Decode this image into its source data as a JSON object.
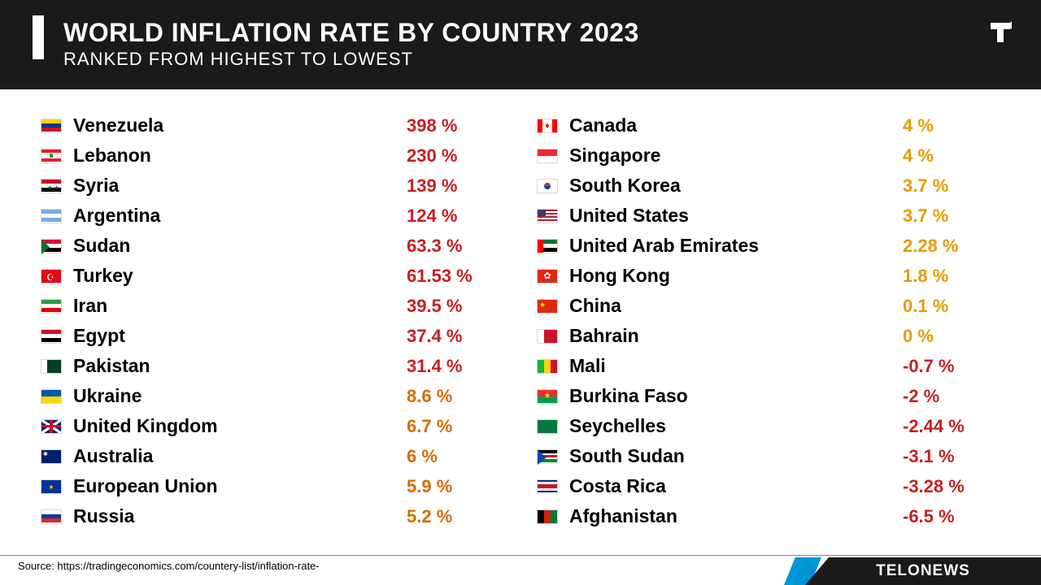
{
  "header": {
    "title": "WORLD INFLATION RATE BY COUNTRY 2023",
    "subtitle": "RANKED FROM HIGHEST TO LOWEST"
  },
  "colors": {
    "high": "#c81e1e",
    "mid": "#d96a00",
    "low_pos": "#e69b00",
    "negative": "#c81e1e",
    "header_bg": "#1a1a1a",
    "brand_accent": "#0095d6"
  },
  "left": [
    {
      "country": "Venezuela",
      "value": "398 %",
      "color": "#c81e1e",
      "flag": "ve"
    },
    {
      "country": "Lebanon",
      "value": "230 %",
      "color": "#c81e1e",
      "flag": "lb"
    },
    {
      "country": "Syria",
      "value": "139 %",
      "color": "#c81e1e",
      "flag": "sy"
    },
    {
      "country": "Argentina",
      "value": "124 %",
      "color": "#c81e1e",
      "flag": "ar"
    },
    {
      "country": "Sudan",
      "value": "63.3 %",
      "color": "#c81e1e",
      "flag": "sd"
    },
    {
      "country": "Turkey",
      "value": "61.53 %",
      "color": "#c81e1e",
      "flag": "tr"
    },
    {
      "country": "Iran",
      "value": "39.5 %",
      "color": "#c81e1e",
      "flag": "ir"
    },
    {
      "country": "Egypt",
      "value": "37.4 %",
      "color": "#c81e1e",
      "flag": "eg"
    },
    {
      "country": "Pakistan",
      "value": "31.4 %",
      "color": "#c81e1e",
      "flag": "pk"
    },
    {
      "country": "Ukraine",
      "value": "8.6 %",
      "color": "#d96a00",
      "flag": "ua"
    },
    {
      "country": "United Kingdom",
      "value": "6.7 %",
      "color": "#d96a00",
      "flag": "gb"
    },
    {
      "country": "Australia",
      "value": "6 %",
      "color": "#d96a00",
      "flag": "au"
    },
    {
      "country": "European Union",
      "value": "5.9 %",
      "color": "#d96a00",
      "flag": "eu"
    },
    {
      "country": "Russia",
      "value": "5.2 %",
      "color": "#d96a00",
      "flag": "ru"
    }
  ],
  "right": [
    {
      "country": "Canada",
      "value": "4 %",
      "color": "#e69b00",
      "flag": "ca"
    },
    {
      "country": "Singapore",
      "value": "4 %",
      "color": "#e69b00",
      "flag": "sg"
    },
    {
      "country": "South Korea",
      "value": "3.7 %",
      "color": "#e69b00",
      "flag": "kr"
    },
    {
      "country": "United States",
      "value": "3.7 %",
      "color": "#e69b00",
      "flag": "us"
    },
    {
      "country": "United Arab Emirates",
      "value": "2.28 %",
      "color": "#e69b00",
      "flag": "ae"
    },
    {
      "country": "Hong Kong",
      "value": "1.8 %",
      "color": "#e69b00",
      "flag": "hk"
    },
    {
      "country": "China",
      "value": "0.1 %",
      "color": "#e69b00",
      "flag": "cn"
    },
    {
      "country": "Bahrain",
      "value": "0 %",
      "color": "#e69b00",
      "flag": "bh"
    },
    {
      "country": "Mali",
      "value": "-0.7 %",
      "color": "#c81e1e",
      "flag": "ml"
    },
    {
      "country": "Burkina Faso",
      "value": "-2 %",
      "color": "#c81e1e",
      "flag": "bf"
    },
    {
      "country": "Seychelles",
      "value": "-2.44 %",
      "color": "#c81e1e",
      "flag": "sc"
    },
    {
      "country": "South Sudan",
      "value": "-3.1 %",
      "color": "#c81e1e",
      "flag": "ss"
    },
    {
      "country": "Costa Rica",
      "value": "-3.28 %",
      "color": "#c81e1e",
      "flag": "cr"
    },
    {
      "country": "Afghanistan",
      "value": "-6.5 %",
      "color": "#c81e1e",
      "flag": "af"
    }
  ],
  "source": "Source: https://tradingeconomics.com/countery-list/inflation-rate-",
  "brand": "TELONEWS"
}
